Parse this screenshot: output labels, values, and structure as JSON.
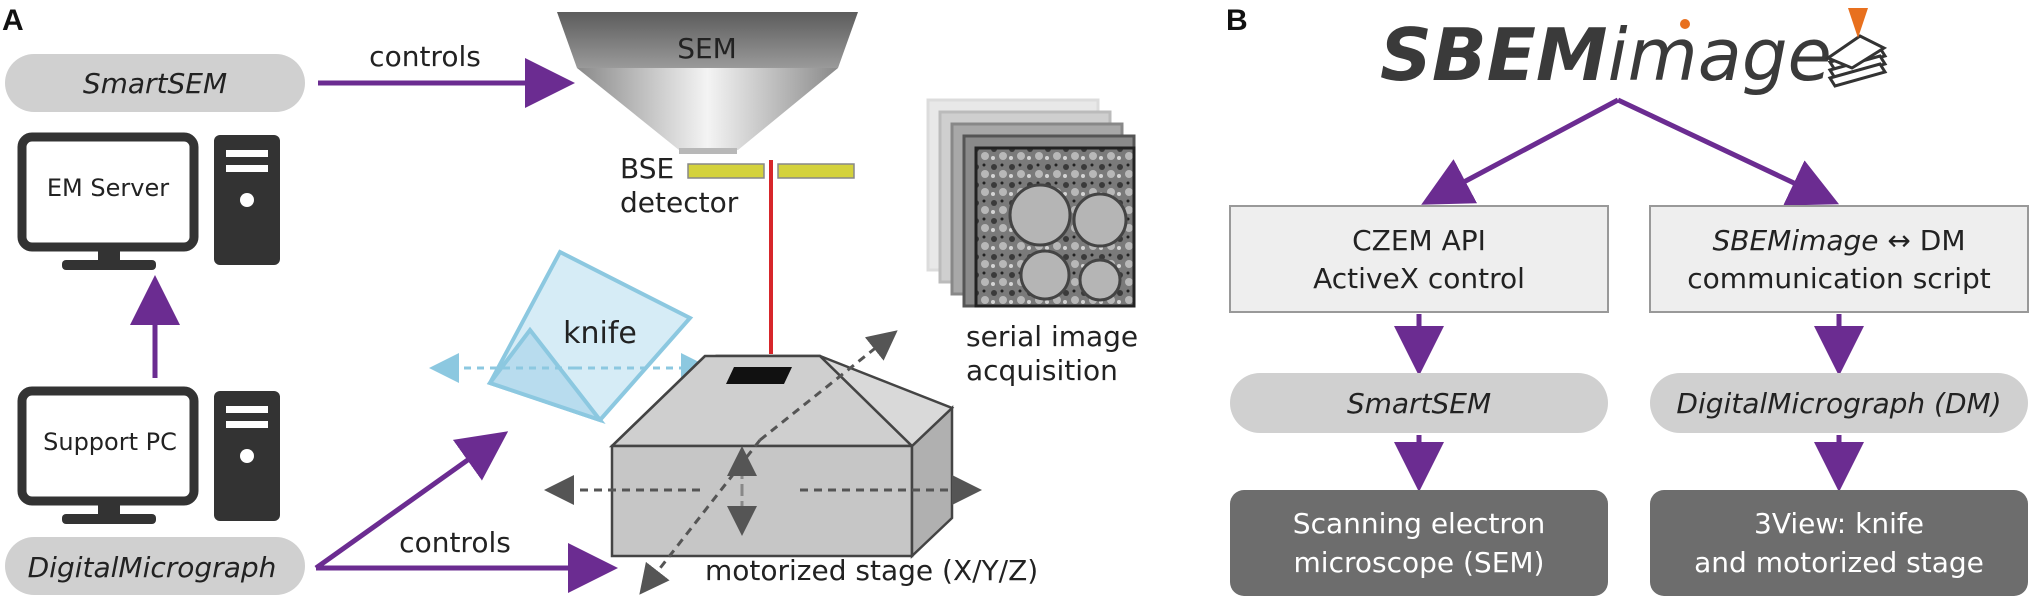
{
  "panel_a": {
    "label": "A",
    "smartsem": "SmartSEM",
    "em_server": "EM Server",
    "support_pc": "Support PC",
    "digitalmicrograph": "DigitalMicrograph",
    "controls_top": "controls",
    "controls_bottom": "controls",
    "sem": "SEM",
    "bse_line1": "BSE",
    "bse_line2": "detector",
    "knife": "knife",
    "serial_line1": "serial image",
    "serial_line2": "acquisition",
    "stage": "motorized stage (X/Y/Z)"
  },
  "panel_b": {
    "label": "B",
    "logo_bold": "SBEM",
    "logo_light": "image",
    "czem_line1": "CZEM API",
    "czem_line2": "ActiveX control",
    "dm_line1_italic": "SBEMimage",
    "dm_line1_rest": " ↔ DM",
    "dm_line2": "communication script",
    "smartsem": "SmartSEM",
    "dm_software": "DigitalMicrograph (DM)",
    "sem_line1": "Scanning electron",
    "sem_line2": "microscope (SEM)",
    "view_line1": "3View: knife",
    "view_line2": "and motorized stage"
  },
  "colors": {
    "arrow_purple": "#6b2c91",
    "pill_gray": "#d0d0d0",
    "box_light": "#eeeeee",
    "box_dark": "#6d6d6d",
    "beam_red": "#d7262a",
    "detector_yellow": "#d4d23c",
    "knife_blue": "#8cc8e0",
    "logo_orange": "#e8701e"
  }
}
